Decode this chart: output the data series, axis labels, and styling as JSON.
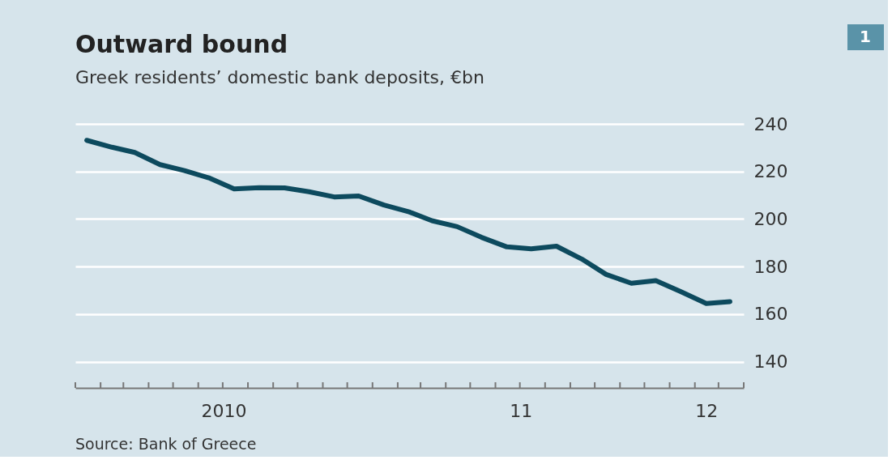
{
  "chart_data": {
    "type": "line",
    "title": "Outward bound",
    "subtitle": "Greek residents’ domestic bank deposits, €bn",
    "x": [
      "2010-01-15",
      "2010-02-15",
      "2010-03-15",
      "2010-04-15",
      "2010-05-15",
      "2010-06-15",
      "2010-07-15",
      "2010-08-15",
      "2010-09-15",
      "2010-10-15",
      "2010-11-15",
      "2010-12-15",
      "2011-01-15",
      "2011-02-15",
      "2011-03-15",
      "2011-04-15",
      "2011-05-15",
      "2011-06-15",
      "2011-07-15",
      "2011-08-15",
      "2011-09-15",
      "2011-10-15",
      "2011-11-15",
      "2011-12-15",
      "2012-01-15",
      "2012-02-15",
      "2012-03-15"
    ],
    "series": [
      {
        "color": "#0d4a5e",
        "values": [
          233.1,
          230.2,
          228.0,
          222.9,
          220.4,
          217.2,
          212.7,
          213.2,
          213.1,
          211.5,
          209.3,
          209.7,
          205.9,
          203.0,
          199.3,
          196.8,
          192.3,
          188.3,
          187.5,
          188.6,
          183.2,
          176.7,
          173.0,
          174.1,
          169.4,
          164.5,
          165.3
        ]
      }
    ],
    "xlim": [
      "2010-01-01",
      "2012-04-01"
    ],
    "xticks": [
      {
        "value": "2010-01-01",
        "label": null
      },
      {
        "value": "2010-02-01",
        "label": null
      },
      {
        "value": "2010-03-01",
        "label": null
      },
      {
        "value": "2010-04-01",
        "label": null
      },
      {
        "value": "2010-05-01",
        "label": null
      },
      {
        "value": "2010-06-01",
        "label": null
      },
      {
        "value": "2010-07-01",
        "label": null
      },
      {
        "value": "2010-08-01",
        "label": null
      },
      {
        "value": "2010-09-01",
        "label": null
      },
      {
        "value": "2010-10-01",
        "label": null
      },
      {
        "value": "2010-11-01",
        "label": null
      },
      {
        "value": "2010-12-01",
        "label": null
      },
      {
        "value": "2011-01-01",
        "label": null
      },
      {
        "value": "2011-02-01",
        "label": null
      },
      {
        "value": "2011-03-01",
        "label": null
      },
      {
        "value": "2011-04-01",
        "label": null
      },
      {
        "value": "2011-05-01",
        "label": null
      },
      {
        "value": "2011-06-01",
        "label": null
      },
      {
        "value": "2011-07-01",
        "label": null
      },
      {
        "value": "2011-08-01",
        "label": null
      },
      {
        "value": "2011-09-01",
        "label": null
      },
      {
        "value": "2011-10-01",
        "label": null
      },
      {
        "value": "2011-11-01",
        "label": null
      },
      {
        "value": "2011-12-01",
        "label": null
      },
      {
        "value": "2012-01-01",
        "label": null
      },
      {
        "value": "2012-02-01",
        "label": null
      },
      {
        "value": "2012-03-01",
        "label": null
      },
      {
        "value": "2012-04-01",
        "label": null
      },
      {
        "value": "2010-07-02",
        "label": "2010"
      },
      {
        "value": "2011-07-02",
        "label": "11"
      },
      {
        "value": "2012-02-15",
        "label": "12"
      }
    ],
    "ylim": [
      129,
      240
    ],
    "yticks": [
      140,
      160,
      180,
      200,
      220,
      240
    ],
    "grid": "y",
    "line_style": "solid",
    "annotations": [
      "Source: Bank of Greece",
      "1"
    ]
  }
}
